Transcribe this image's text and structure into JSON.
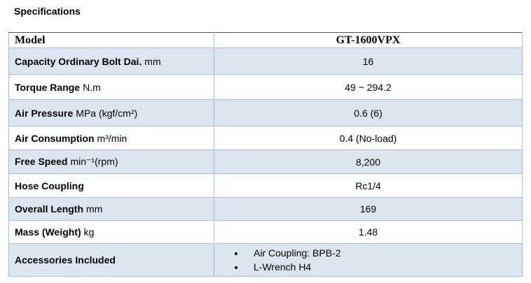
{
  "header": {
    "title": "Specifications"
  },
  "table": {
    "columns": [
      "Model",
      "GT-1600VPX"
    ],
    "rows": [
      {
        "label": "Capacity Ordinary Bolt Dai.",
        "unit": "mm",
        "value": "16"
      },
      {
        "label": "Torque Range",
        "unit": "N.m",
        "value": "49 ~ 294.2"
      },
      {
        "label": "Air Pressure",
        "unit": "MPa (kgf/cm²)",
        "value": "0.6 (6)"
      },
      {
        "label": "Air Consumption",
        "unit": "m³/min",
        "value": "0.4 (No-load)"
      },
      {
        "label": "Free Speed",
        "unit": "min⁻¹(rpm)",
        "value": "8,200"
      },
      {
        "label": "Hose Coupling",
        "value": "Rc1/4"
      },
      {
        "label": "Overall Length",
        "unit": "mm",
        "value": "169"
      },
      {
        "label": "Mass (Weight)",
        "unit": "kg",
        "value": "1.48"
      },
      {
        "label": "Accessories Included",
        "value": [
          "Air Coupling: BPB-2",
          "L-Wrench H4"
        ]
      }
    ]
  }
}
